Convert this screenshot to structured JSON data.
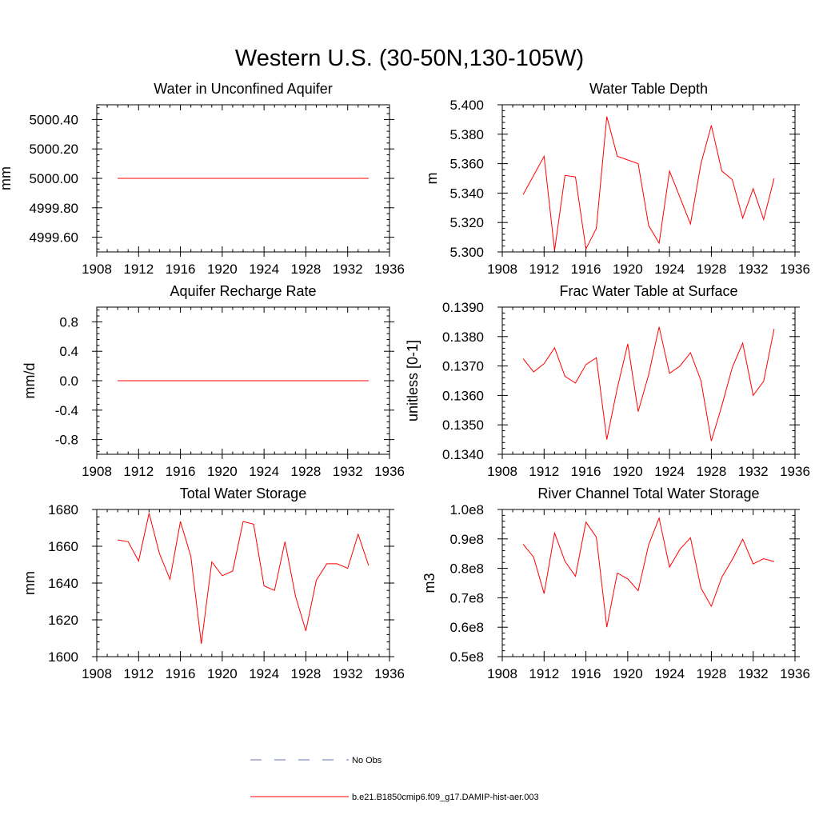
{
  "title": "Western U.S. (30-50N,130-105W)",
  "legend": {
    "entries": [
      {
        "label": "No Obs",
        "color": "#6670b8",
        "dash": true
      },
      {
        "label": "b.e21.B1850cmip6.f09_g17.DAMIP-hist-aer.003",
        "color": "#ff0000",
        "dash": false
      }
    ]
  },
  "chart_data": [
    {
      "type": "line",
      "title": "Water in Unconfined Aquifer",
      "ylabel": "mm",
      "xlim": [
        1908,
        1936
      ],
      "ylim": [
        4999.5,
        5000.5
      ],
      "x_ticks": [
        1908,
        1912,
        1916,
        1920,
        1924,
        1928,
        1932,
        1936
      ],
      "y_ticks": [
        "4999.60",
        "4999.80",
        "5000.00",
        "5000.20",
        "5000.40"
      ],
      "y_tick_values": [
        4999.6,
        4999.8,
        5000.0,
        5000.2,
        5000.4
      ],
      "series": [
        {
          "color": "#ff0000",
          "x": [
            1910,
            1911,
            1912,
            1913,
            1914,
            1915,
            1916,
            1917,
            1918,
            1919,
            1920,
            1921,
            1922,
            1923,
            1924,
            1925,
            1926,
            1927,
            1928,
            1929,
            1930,
            1931,
            1932,
            1933,
            1934
          ],
          "values": [
            5000.0,
            5000.0,
            5000.0,
            5000.0,
            5000.0,
            5000.0,
            5000.0,
            5000.0,
            5000.0,
            5000.0,
            5000.0,
            5000.0,
            5000.0,
            5000.0,
            5000.0,
            5000.0,
            5000.0,
            5000.0,
            5000.0,
            5000.0,
            5000.0,
            5000.0,
            5000.0,
            5000.0,
            5000.0
          ]
        }
      ]
    },
    {
      "type": "line",
      "title": "Water Table Depth",
      "ylabel": "m",
      "xlim": [
        1908,
        1936
      ],
      "ylim": [
        5.3,
        5.4
      ],
      "x_ticks": [
        1908,
        1912,
        1916,
        1920,
        1924,
        1928,
        1932,
        1936
      ],
      "y_ticks": [
        "5.300",
        "5.320",
        "5.340",
        "5.360",
        "5.380",
        "5.400"
      ],
      "y_tick_values": [
        5.3,
        5.32,
        5.34,
        5.36,
        5.38,
        5.4
      ],
      "series": [
        {
          "color": "#ff0000",
          "x": [
            1910,
            1912,
            1913,
            1914,
            1915,
            1916,
            1917,
            1918,
            1919,
            1921,
            1922,
            1923,
            1924,
            1926,
            1927,
            1928,
            1929,
            1930,
            1931,
            1932,
            1933,
            1934
          ],
          "values": [
            5.339,
            5.365,
            5.301,
            5.352,
            5.351,
            5.302,
            5.316,
            5.392,
            5.365,
            5.36,
            5.318,
            5.306,
            5.355,
            5.319,
            5.36,
            5.386,
            5.355,
            5.349,
            5.323,
            5.343,
            5.322,
            5.35
          ]
        }
      ]
    },
    {
      "type": "line",
      "title": "Aquifer Recharge Rate",
      "ylabel": "mm/d",
      "xlim": [
        1908,
        1936
      ],
      "ylim": [
        -1.0,
        1.0
      ],
      "x_ticks": [
        1908,
        1912,
        1916,
        1920,
        1924,
        1928,
        1932,
        1936
      ],
      "y_ticks": [
        "-0.8",
        "-0.4",
        "0.0",
        "0.4",
        "0.8"
      ],
      "y_tick_values": [
        -0.8,
        -0.4,
        0.0,
        0.4,
        0.8
      ],
      "series": [
        {
          "color": "#ff0000",
          "x": [
            1910,
            1911,
            1912,
            1913,
            1914,
            1915,
            1916,
            1917,
            1918,
            1919,
            1920,
            1921,
            1922,
            1923,
            1924,
            1925,
            1926,
            1927,
            1928,
            1929,
            1930,
            1931,
            1932,
            1933,
            1934
          ],
          "values": [
            0,
            0,
            0,
            0,
            0,
            0,
            0,
            0,
            0,
            0,
            0,
            0,
            0,
            0,
            0,
            0,
            0,
            0,
            0,
            0,
            0,
            0,
            0,
            0,
            0
          ]
        }
      ]
    },
    {
      "type": "line",
      "title": "Frac Water Table at Surface",
      "ylabel": "unitless [0-1]",
      "xlim": [
        1908,
        1936
      ],
      "ylim": [
        0.134,
        0.139
      ],
      "x_ticks": [
        1908,
        1912,
        1916,
        1920,
        1924,
        1928,
        1932,
        1936
      ],
      "y_ticks": [
        "0.1340",
        "0.1350",
        "0.1360",
        "0.1370",
        "0.1380",
        "0.1390"
      ],
      "y_tick_values": [
        0.134,
        0.135,
        0.136,
        0.137,
        0.138,
        0.139
      ],
      "series": [
        {
          "color": "#ff0000",
          "x": [
            1910,
            1911,
            1912,
            1913,
            1914,
            1915,
            1916,
            1917,
            1918,
            1919,
            1920,
            1921,
            1922,
            1923,
            1924,
            1925,
            1926,
            1927,
            1928,
            1929,
            1930,
            1931,
            1932,
            1933,
            1934
          ],
          "values": [
            0.13725,
            0.1368,
            0.13708,
            0.13762,
            0.13665,
            0.13642,
            0.13705,
            0.13728,
            0.1345,
            0.13625,
            0.13775,
            0.13545,
            0.1367,
            0.13833,
            0.13675,
            0.137,
            0.13745,
            0.1365,
            0.13445,
            0.13565,
            0.13695,
            0.13778,
            0.136,
            0.13648,
            0.13826
          ]
        }
      ]
    },
    {
      "type": "line",
      "title": "Total Water Storage",
      "ylabel": "mm",
      "xlim": [
        1908,
        1936
      ],
      "ylim": [
        1600,
        1680
      ],
      "x_ticks": [
        1908,
        1912,
        1916,
        1920,
        1924,
        1928,
        1932,
        1936
      ],
      "y_ticks": [
        "1600",
        "1620",
        "1640",
        "1660",
        "1680"
      ],
      "y_tick_values": [
        1600,
        1620,
        1640,
        1660,
        1680
      ],
      "series": [
        {
          "color": "#ff0000",
          "x": [
            1910,
            1911,
            1912,
            1913,
            1914,
            1915,
            1916,
            1917,
            1918,
            1919,
            1920,
            1921,
            1922,
            1923,
            1924,
            1925,
            1926,
            1927,
            1928,
            1929,
            1930,
            1931,
            1932,
            1933,
            1934
          ],
          "values": [
            1663.5,
            1662.5,
            1652,
            1678,
            1656,
            1642,
            1673.5,
            1654.5,
            1607,
            1651.5,
            1644,
            1646.5,
            1673.5,
            1672,
            1638.5,
            1636,
            1662.5,
            1633,
            1614,
            1641.5,
            1650.5,
            1650.5,
            1648,
            1666.5,
            1649.5
          ]
        }
      ]
    },
    {
      "type": "line",
      "title": "River Channel Total Water Storage",
      "ylabel": "m3",
      "xlim": [
        1908,
        1936
      ],
      "ylim": [
        0.5,
        1.0
      ],
      "x_ticks": [
        1908,
        1912,
        1916,
        1920,
        1924,
        1928,
        1932,
        1936
      ],
      "y_ticks": [
        "0.5e8",
        "0.6e8",
        "0.7e8",
        "0.8e8",
        "0.9e8",
        "1.0e8"
      ],
      "y_tick_values": [
        0.5,
        0.6,
        0.7,
        0.8,
        0.9,
        1.0
      ],
      "series": [
        {
          "color": "#ff0000",
          "x": [
            1910,
            1911,
            1912,
            1913,
            1914,
            1915,
            1916,
            1917,
            1918,
            1919,
            1920,
            1921,
            1922,
            1923,
            1924,
            1925,
            1926,
            1927,
            1928,
            1929,
            1930,
            1931,
            1932,
            1933,
            1934
          ],
          "values": [
            0.882,
            0.838,
            0.714,
            0.92,
            0.824,
            0.773,
            0.957,
            0.906,
            0.6,
            0.784,
            0.764,
            0.724,
            0.88,
            0.971,
            0.804,
            0.865,
            0.904,
            0.733,
            0.671,
            0.77,
            0.83,
            0.899,
            0.815,
            0.833,
            0.823
          ]
        }
      ]
    }
  ]
}
